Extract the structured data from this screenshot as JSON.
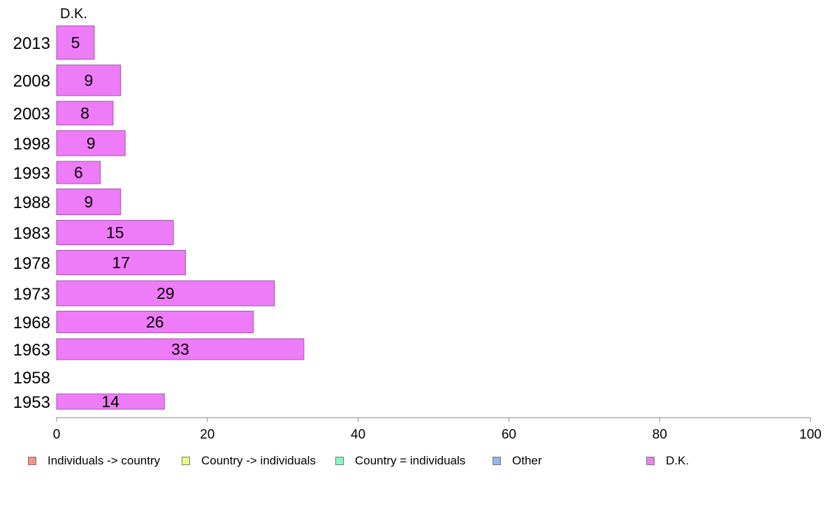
{
  "chart_data": {
    "type": "bar",
    "orientation": "horizontal",
    "panel_title": "D.K.",
    "categories": [
      "2013",
      "2008",
      "2003",
      "1998",
      "1993",
      "1988",
      "1983",
      "1978",
      "1973",
      "1968",
      "1963",
      "1958",
      "1953"
    ],
    "values": [
      5,
      9,
      8,
      9,
      6,
      9,
      15,
      17,
      29,
      26,
      33,
      null,
      14
    ],
    "bar_extent": [
      5.0,
      8.5,
      7.5,
      9.1,
      5.8,
      8.5,
      15.5,
      17.1,
      28.9,
      26.1,
      32.8,
      null,
      14.3
    ],
    "xlim": [
      0,
      100
    ],
    "xticks": [
      0,
      20,
      40,
      60,
      80,
      100
    ],
    "grid": false,
    "bar_color": "#ee7bf7",
    "legend_position": "bottom",
    "legend": [
      {
        "label": "Individuals -> country",
        "color": "#f8918a"
      },
      {
        "label": "Country -> individuals",
        "color": "#e9ff88"
      },
      {
        "label": "Country = individuals",
        "color": "#8df5c3"
      },
      {
        "label": "Other",
        "color": "#8fb8f2"
      },
      {
        "label": "D.K.",
        "color": "#ee7bf7"
      }
    ]
  }
}
